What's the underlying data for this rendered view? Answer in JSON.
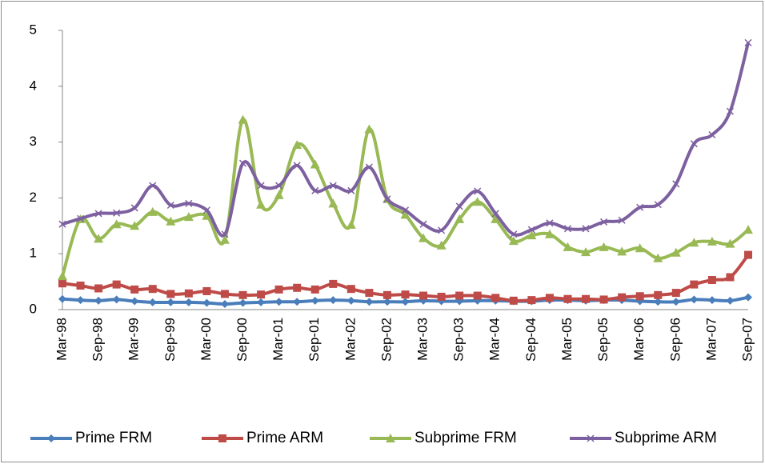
{
  "chart_data": {
    "type": "line",
    "categories": [
      "Mar-98",
      null,
      "Sep-98",
      null,
      "Mar-99",
      null,
      "Sep-99",
      null,
      "Mar-00",
      null,
      "Sep-00",
      null,
      "Mar-01",
      null,
      "Sep-01",
      null,
      "Mar-02",
      null,
      "Sep-02",
      null,
      "Mar-03",
      null,
      "Sep-03",
      null,
      "Mar-04",
      null,
      "Sep-04",
      null,
      "Mar-05",
      null,
      "Sep-05",
      null,
      "Mar-06",
      null,
      "Sep-06",
      null,
      "Mar-07",
      null,
      "Sep-07"
    ],
    "ylim": [
      0,
      5
    ],
    "yticks": [
      0,
      1,
      2,
      3,
      4,
      5
    ],
    "legend": "bottom",
    "smooth": true,
    "series": [
      {
        "name": "Prime FRM",
        "color": "#4a7ebb",
        "marker": "diamond",
        "values": [
          0.19,
          0.17,
          0.16,
          0.18,
          0.15,
          0.13,
          0.13,
          0.13,
          0.12,
          0.1,
          0.12,
          0.13,
          0.14,
          0.14,
          0.16,
          0.17,
          0.16,
          0.14,
          0.14,
          0.14,
          0.16,
          0.15,
          0.15,
          0.16,
          0.16,
          0.15,
          0.15,
          0.17,
          0.17,
          0.16,
          0.17,
          0.17,
          0.15,
          0.14,
          0.14,
          0.18,
          0.17,
          0.16,
          0.22
        ]
      },
      {
        "name": "Prime ARM",
        "color": "#be4b48",
        "marker": "square",
        "values": [
          0.47,
          0.43,
          0.38,
          0.45,
          0.36,
          0.37,
          0.28,
          0.29,
          0.33,
          0.28,
          0.26,
          0.27,
          0.36,
          0.39,
          0.36,
          0.46,
          0.37,
          0.3,
          0.26,
          0.27,
          0.25,
          0.23,
          0.25,
          0.25,
          0.21,
          0.16,
          0.17,
          0.21,
          0.19,
          0.19,
          0.18,
          0.22,
          0.24,
          0.26,
          0.3,
          0.45,
          0.53,
          0.58,
          0.98
        ]
      },
      {
        "name": "Subprime FRM",
        "color": "#98b954",
        "marker": "triangle",
        "values": [
          0.6,
          1.62,
          1.27,
          1.53,
          1.5,
          1.75,
          1.58,
          1.66,
          1.68,
          1.25,
          3.4,
          1.88,
          2.05,
          2.95,
          2.6,
          1.9,
          1.52,
          3.23,
          1.98,
          1.7,
          1.28,
          1.15,
          1.62,
          1.93,
          1.62,
          1.23,
          1.33,
          1.35,
          1.12,
          1.03,
          1.12,
          1.04,
          1.1,
          0.92,
          1.02,
          1.2,
          1.22,
          1.18,
          1.43
        ]
      },
      {
        "name": "Subprime ARM",
        "color": "#7d60a0",
        "marker": "x",
        "values": [
          1.53,
          1.63,
          1.72,
          1.73,
          1.82,
          2.22,
          1.87,
          1.9,
          1.78,
          1.35,
          2.62,
          2.22,
          2.22,
          2.58,
          2.13,
          2.22,
          2.13,
          2.55,
          1.98,
          1.78,
          1.53,
          1.42,
          1.85,
          2.12,
          1.72,
          1.35,
          1.43,
          1.55,
          1.45,
          1.45,
          1.57,
          1.6,
          1.83,
          1.88,
          2.25,
          2.97,
          3.13,
          3.55,
          4.78
        ]
      }
    ]
  }
}
